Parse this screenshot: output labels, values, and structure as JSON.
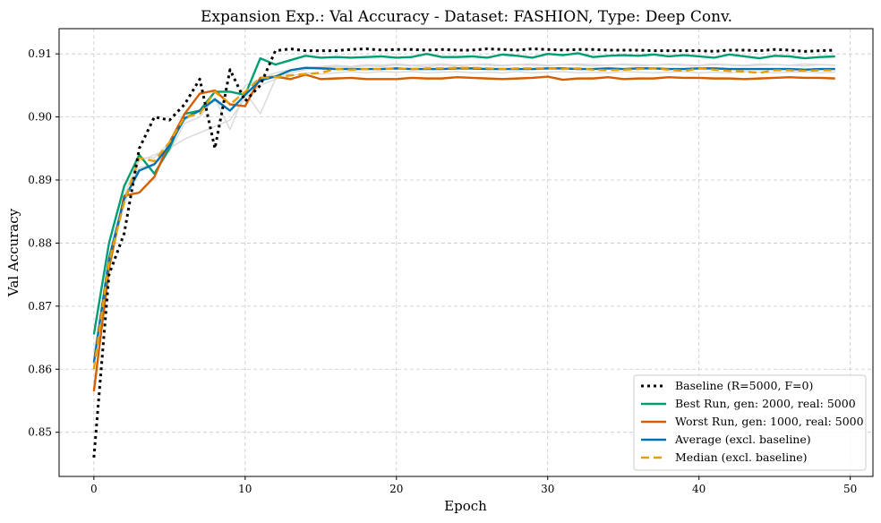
{
  "chart_data": {
    "type": "line",
    "title": "Expansion Exp.: Val Accuracy - Dataset: FASHION, Type: Deep Conv.",
    "xlabel": "Epoch",
    "ylabel": "Val Accuracy",
    "xlim": [
      -2.3,
      51.5
    ],
    "ylim": [
      0.843,
      0.914
    ],
    "xticks": [
      0,
      10,
      20,
      30,
      40,
      50
    ],
    "yticks": [
      0.85,
      0.86,
      0.87,
      0.88,
      0.89,
      0.9,
      0.91
    ],
    "ytick_labels": [
      "0.85",
      "0.86",
      "0.87",
      "0.88",
      "0.89",
      "0.90",
      "0.91"
    ],
    "grid": true,
    "legend_position": "lower-right",
    "background_runs": [
      {
        "values": [
          0.8625,
          0.877,
          0.886,
          0.893,
          0.894,
          0.895,
          0.8965,
          0.8975,
          0.8985,
          0.8995,
          0.903,
          0.905,
          0.906,
          0.9065,
          0.907,
          0.9068,
          0.907,
          0.9072,
          0.907,
          0.9072,
          0.9071,
          0.9072,
          0.907,
          0.9071,
          0.9072,
          0.907,
          0.9071,
          0.907,
          0.9072,
          0.907,
          0.9071,
          0.9072,
          0.907,
          0.9071,
          0.907,
          0.9072,
          0.9071,
          0.907,
          0.9071,
          0.9072,
          0.907,
          0.9071,
          0.907,
          0.9072,
          0.9071,
          0.907,
          0.9071,
          0.9072,
          0.907,
          0.9071
        ]
      },
      {
        "values": [
          0.861,
          0.8765,
          0.887,
          0.892,
          0.8925,
          0.8945,
          0.899,
          0.9,
          0.903,
          0.898,
          0.904,
          0.9005,
          0.906,
          0.907,
          0.9075,
          0.9078,
          0.908,
          0.9079,
          0.9081,
          0.908,
          0.9082,
          0.9081,
          0.908,
          0.9082,
          0.9081,
          0.9083,
          0.9082,
          0.9081,
          0.9083,
          0.9082,
          0.9081,
          0.9083,
          0.9082,
          0.9081,
          0.9082,
          0.9083,
          0.9081,
          0.9082,
          0.9083,
          0.9082,
          0.9081,
          0.9083,
          0.9082,
          0.9081,
          0.9082,
          0.9083,
          0.9082,
          0.9081,
          0.9083,
          0.9082
        ]
      },
      {
        "values": [
          0.8615,
          0.878,
          0.8875,
          0.8935,
          0.8935,
          0.896,
          0.8995,
          0.901,
          0.9025,
          0.901,
          0.905,
          0.906,
          0.907,
          0.9075,
          0.9078,
          0.908,
          0.9082,
          0.908,
          0.9083,
          0.9082,
          0.9084,
          0.9082,
          0.9083,
          0.9084,
          0.9082,
          0.9083,
          0.9084,
          0.9082,
          0.9083,
          0.9084,
          0.9082,
          0.9083,
          0.9084,
          0.9083,
          0.9082,
          0.9084,
          0.9083,
          0.9082,
          0.9084,
          0.9083,
          0.9082,
          0.9084,
          0.9083,
          0.9082,
          0.9084,
          0.9083,
          0.9082,
          0.9084,
          0.9083,
          0.9082
        ]
      }
    ],
    "series": [
      {
        "name": "Baseline (R=5000, F=0)",
        "color": "#000000",
        "style": "dotted",
        "values": [
          0.846,
          0.875,
          0.8815,
          0.895,
          0.9,
          0.8995,
          0.902,
          0.906,
          0.895,
          0.9075,
          0.9025,
          0.905,
          0.9105,
          0.9108,
          0.9105,
          0.9105,
          0.9105,
          0.9107,
          0.9108,
          0.9106,
          0.9107,
          0.9107,
          0.9106,
          0.9107,
          0.9106,
          0.9106,
          0.9108,
          0.9107,
          0.9106,
          0.9108,
          0.9107,
          0.9106,
          0.9107,
          0.9107,
          0.9106,
          0.9106,
          0.9106,
          0.9105,
          0.9105,
          0.9105,
          0.9105,
          0.9104,
          0.9106,
          0.9106,
          0.9105,
          0.9107,
          0.9106,
          0.9104,
          0.9105,
          0.9106
        ]
      },
      {
        "name": "Best Run, gen: 2000, real: 5000",
        "color": "#009E73",
        "style": "solid",
        "values": [
          0.8655,
          0.88,
          0.889,
          0.894,
          0.891,
          0.895,
          0.9005,
          0.901,
          0.904,
          0.904,
          0.9035,
          0.9093,
          0.9083,
          0.909,
          0.9097,
          0.9094,
          0.9095,
          0.9094,
          0.9095,
          0.9096,
          0.9094,
          0.9095,
          0.91,
          0.9095,
          0.9095,
          0.9096,
          0.9094,
          0.9099,
          0.9097,
          0.9094,
          0.91,
          0.9098,
          0.9101,
          0.9095,
          0.9097,
          0.9098,
          0.9097,
          0.9099,
          0.9096,
          0.9098,
          0.9096,
          0.9094,
          0.9099,
          0.9096,
          0.9093,
          0.9097,
          0.9096,
          0.9093,
          0.9095,
          0.9096
        ]
      },
      {
        "name": "Worst Run, gen: 1000, real: 5000",
        "color": "#D55E00",
        "style": "solid",
        "values": [
          0.8565,
          0.876,
          0.8875,
          0.888,
          0.8905,
          0.896,
          0.9005,
          0.9037,
          0.9042,
          0.902,
          0.9017,
          0.9062,
          0.9064,
          0.906,
          0.9067,
          0.906,
          0.9061,
          0.9062,
          0.906,
          0.906,
          0.906,
          0.9062,
          0.9061,
          0.9061,
          0.9063,
          0.9062,
          0.9061,
          0.906,
          0.9061,
          0.9062,
          0.9064,
          0.9059,
          0.9061,
          0.9061,
          0.9063,
          0.906,
          0.9061,
          0.9061,
          0.9063,
          0.9062,
          0.9062,
          0.9061,
          0.9061,
          0.906,
          0.9061,
          0.9062,
          0.9063,
          0.9062,
          0.9062,
          0.9061
        ]
      },
      {
        "name": "Average (excl. baseline)",
        "color": "#0072B2",
        "style": "solid",
        "values": [
          0.861,
          0.8775,
          0.887,
          0.8915,
          0.8925,
          0.8955,
          0.8998,
          0.901,
          0.9028,
          0.901,
          0.9035,
          0.9058,
          0.9064,
          0.9074,
          0.9078,
          0.9077,
          0.9076,
          0.9076,
          0.9076,
          0.9076,
          0.9077,
          0.9076,
          0.9076,
          0.9076,
          0.9077,
          0.9077,
          0.9076,
          0.9076,
          0.9076,
          0.9076,
          0.9077,
          0.9077,
          0.9076,
          0.9076,
          0.9077,
          0.9076,
          0.9077,
          0.9077,
          0.9076,
          0.9076,
          0.9077,
          0.9077,
          0.9076,
          0.9076,
          0.9076,
          0.9076,
          0.9076,
          0.9075,
          0.9076,
          0.9076
        ]
      },
      {
        "name": "Median (excl. baseline)",
        "color": "#E69F00",
        "style": "dashed",
        "values": [
          0.86,
          0.877,
          0.8865,
          0.8935,
          0.893,
          0.896,
          0.9,
          0.9005,
          0.904,
          0.902,
          0.904,
          0.9062,
          0.9063,
          0.9066,
          0.9068,
          0.907,
          0.9076,
          0.9075,
          0.9076,
          0.9076,
          0.9077,
          0.9076,
          0.9077,
          0.9077,
          0.9078,
          0.9078,
          0.9077,
          0.9076,
          0.9077,
          0.9077,
          0.9077,
          0.9076,
          0.9077,
          0.9075,
          0.9074,
          0.9075,
          0.9076,
          0.9077,
          0.9075,
          0.9073,
          0.9077,
          0.9075,
          0.9073,
          0.9072,
          0.907,
          0.9074,
          0.9074,
          0.9073,
          0.9074,
          0.9074
        ]
      }
    ]
  }
}
